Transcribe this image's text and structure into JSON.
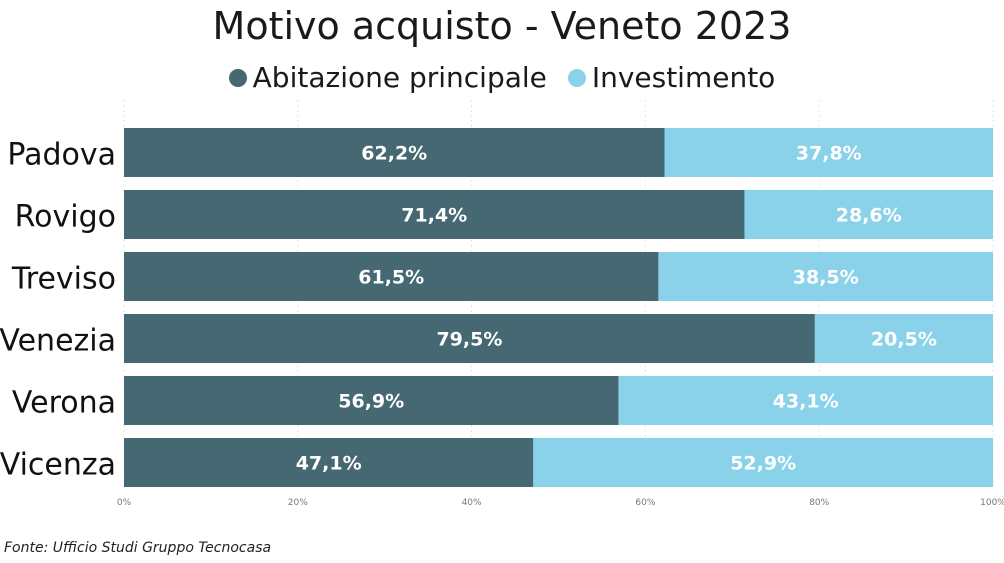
{
  "chart_data": {
    "type": "bar",
    "orientation": "horizontal",
    "stacked": true,
    "title": "Motivo acquisto - Veneto 2023",
    "categories": [
      "Padova",
      "Rovigo",
      "Treviso",
      "Venezia",
      "Verona",
      "Vicenza"
    ],
    "series": [
      {
        "name": "Abitazione principale",
        "values": [
          62.2,
          71.4,
          61.5,
          79.5,
          56.9,
          47.1
        ],
        "labels": [
          "62,2%",
          "71,4%",
          "61,5%",
          "79,5%",
          "56,9%",
          "47,1%"
        ],
        "color": "#456872"
      },
      {
        "name": "Investimento",
        "values": [
          37.8,
          28.6,
          38.5,
          20.5,
          43.1,
          52.9
        ],
        "labels": [
          "37,8%",
          "28,6%",
          "38,5%",
          "20,5%",
          "43,1%",
          "52,9%"
        ],
        "color": "#89d2ea"
      }
    ],
    "xlim": [
      0,
      100
    ],
    "xticks": [
      "0%",
      "20%",
      "40%",
      "60%",
      "80%",
      "100%"
    ],
    "grid": true,
    "legend_position": "top"
  },
  "source": "Fonte: Ufficio Studi Gruppo Tecnocasa"
}
